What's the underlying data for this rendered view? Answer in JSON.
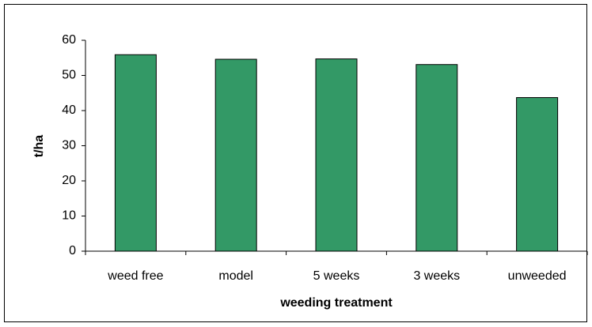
{
  "chart_data": {
    "type": "bar",
    "categories": [
      "weed free",
      "model",
      "5 weeks",
      "3 weeks",
      "unweeded"
    ],
    "values": [
      55.9,
      54.6,
      54.7,
      53.1,
      43.7
    ],
    "color": "#339966",
    "ylim": [
      0,
      60
    ],
    "yticks": [
      0,
      10,
      20,
      30,
      40,
      50,
      60
    ],
    "y_label": "t/ha",
    "x_label": "weeding treatment",
    "grid": false
  }
}
